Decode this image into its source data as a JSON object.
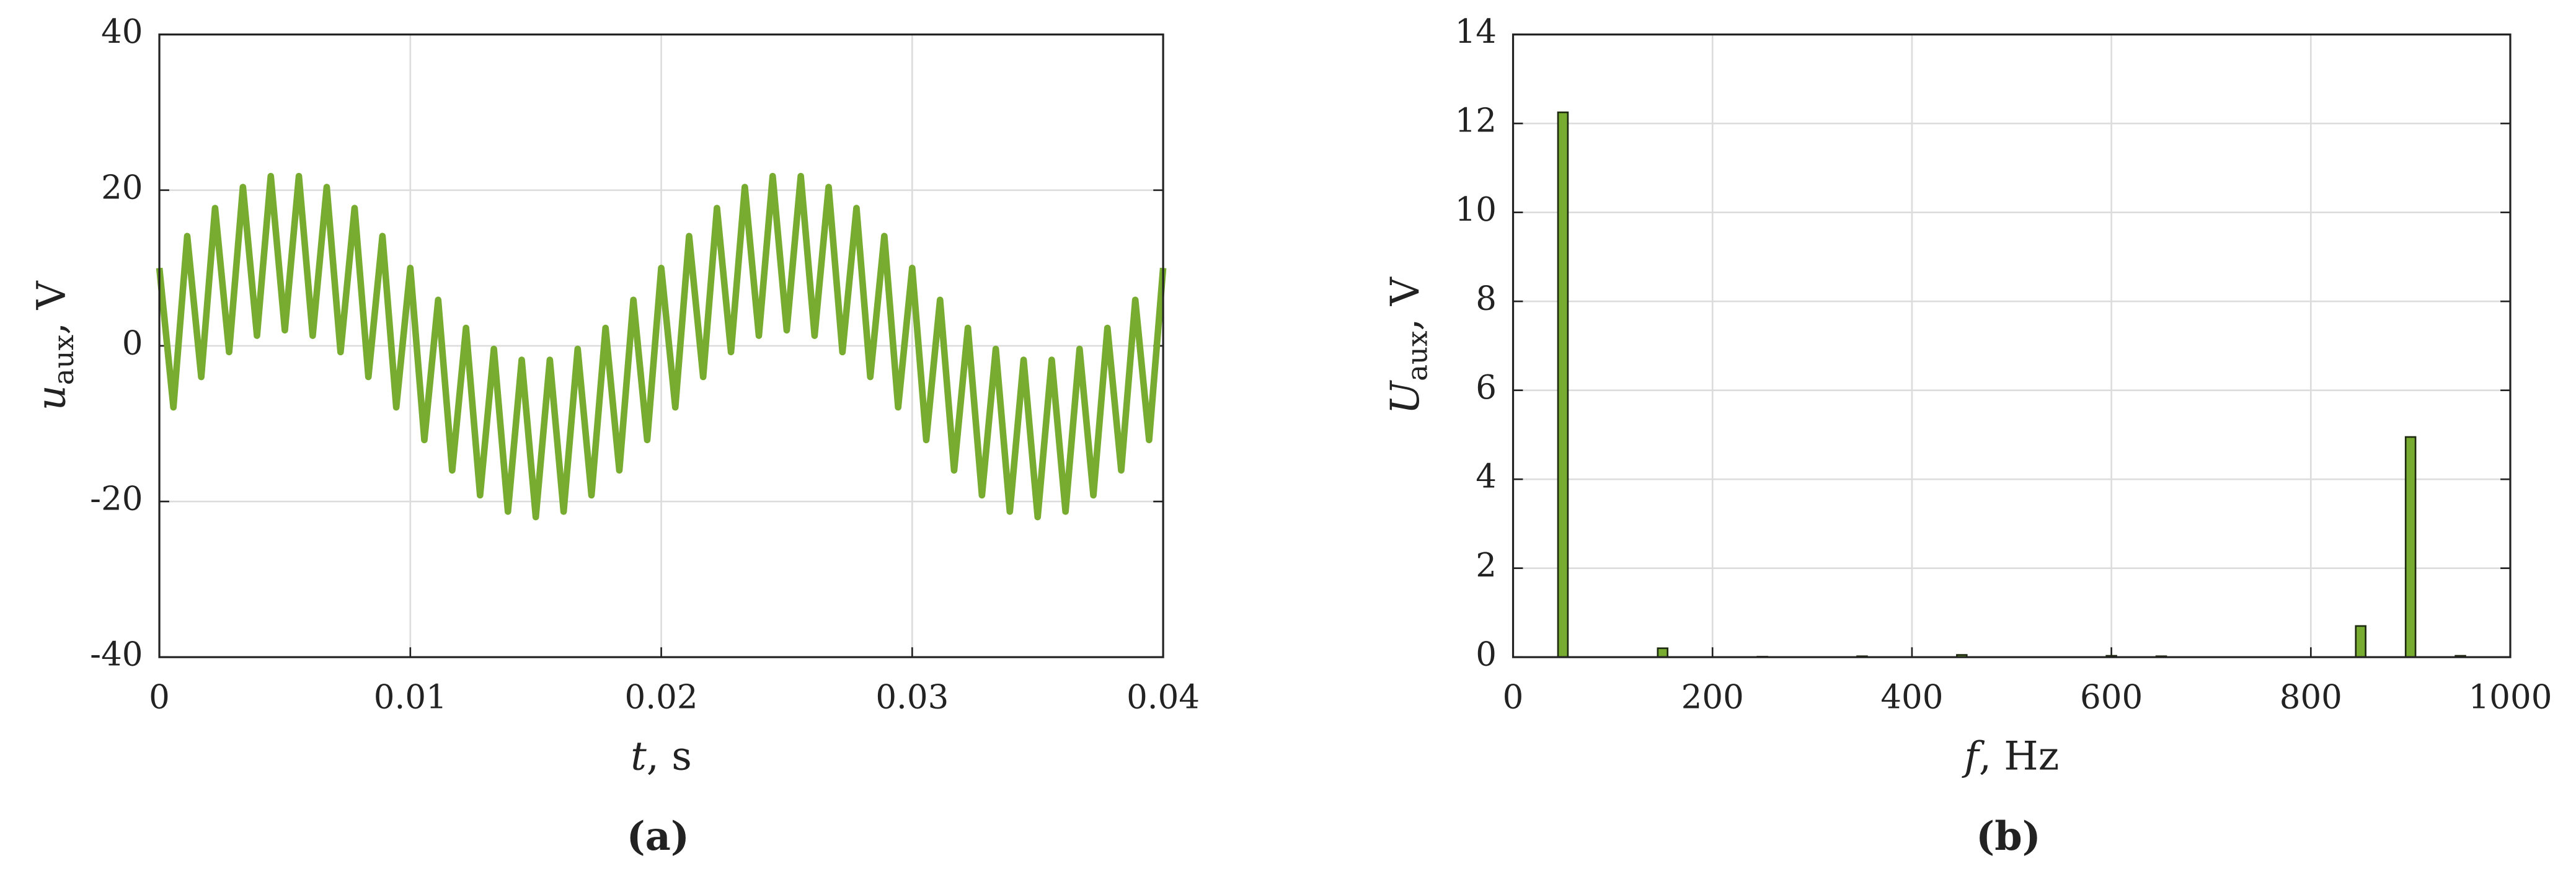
{
  "chart_data": [
    {
      "type": "line",
      "x_label": {
        "symbol": "t",
        "unit": ", s"
      },
      "y_label": {
        "symbol": "u",
        "subscript": "aux",
        "unit": ", V"
      },
      "caption": "(a)",
      "xlim": [
        0,
        0.04
      ],
      "xticks": [
        0,
        0.01,
        0.02,
        0.03,
        0.04
      ],
      "ylim": [
        -40,
        40
      ],
      "yticks": [
        -40,
        -20,
        0,
        20,
        40
      ],
      "grid": true,
      "color": "#77ac30",
      "x": [
        0,
        0.00056,
        0.00111,
        0.00167,
        0.00222,
        0.00278,
        0.00333,
        0.00389,
        0.00444,
        0.005,
        0.00556,
        0.00611,
        0.00667,
        0.00722,
        0.00778,
        0.00833,
        0.00889,
        0.00944,
        0.01,
        0.01056,
        0.01111,
        0.01167,
        0.01222,
        0.01278,
        0.01333,
        0.01389,
        0.01444,
        0.015,
        0.01556,
        0.01611,
        0.01667,
        0.01722,
        0.01778,
        0.01833,
        0.01889,
        0.01944,
        0.02,
        0.02056,
        0.02111,
        0.02167,
        0.02222,
        0.02278,
        0.02333,
        0.02389,
        0.02444,
        0.025,
        0.02556,
        0.02611,
        0.02667,
        0.02722,
        0.02778,
        0.02833,
        0.02889,
        0.02944,
        0.03,
        0.03056,
        0.03111,
        0.03167,
        0.03222,
        0.03278,
        0.03333,
        0.03389,
        0.03444,
        0.035,
        0.03556,
        0.03611,
        0.03667,
        0.03722,
        0.03778,
        0.03833,
        0.03889,
        0.03944,
        0.04
      ],
      "values": [
        10,
        -7.9,
        14.1,
        -4,
        17.7,
        -0.8,
        20.4,
        1.3,
        21.8,
        2,
        21.8,
        1.3,
        20.4,
        -0.8,
        17.7,
        -4,
        14.1,
        -7.9,
        10,
        -12.1,
        5.9,
        -16,
        2.3,
        -19.2,
        -0.4,
        -21.3,
        -1.8,
        -22,
        -1.8,
        -21.3,
        -0.4,
        -19.2,
        2.3,
        -16,
        5.9,
        -12.1,
        10,
        -7.9,
        14.1,
        -4,
        17.7,
        -0.8,
        20.4,
        1.3,
        21.8,
        2,
        21.8,
        1.3,
        20.4,
        -0.8,
        17.7,
        -4,
        14.1,
        -7.9,
        10,
        -12.1,
        5.9,
        -16,
        2.3,
        -19.2,
        -0.4,
        -21.3,
        -1.8,
        -22,
        -1.8,
        -21.3,
        -0.4,
        -19.2,
        2.3,
        -16,
        5.9,
        -12.1,
        10
      ]
    },
    {
      "type": "bar",
      "x_label": {
        "symbol": "f",
        "unit": ", Hz"
      },
      "y_label": {
        "symbol": "U",
        "subscript": "aux",
        "unit": ", V"
      },
      "caption": "(b)",
      "xlim": [
        0,
        1000
      ],
      "xticks": [
        0,
        200,
        400,
        600,
        800,
        1000
      ],
      "ylim": [
        0,
        14
      ],
      "yticks": [
        0,
        2,
        4,
        6,
        8,
        10,
        12,
        14
      ],
      "grid": true,
      "color": "#77ac30",
      "x": [
        50,
        150,
        250,
        350,
        450,
        600,
        650,
        850,
        900,
        950
      ],
      "values": [
        12.25,
        0.2,
        0.01,
        0.02,
        0.05,
        0.03,
        0.02,
        0.7,
        4.95,
        0.03
      ]
    }
  ]
}
